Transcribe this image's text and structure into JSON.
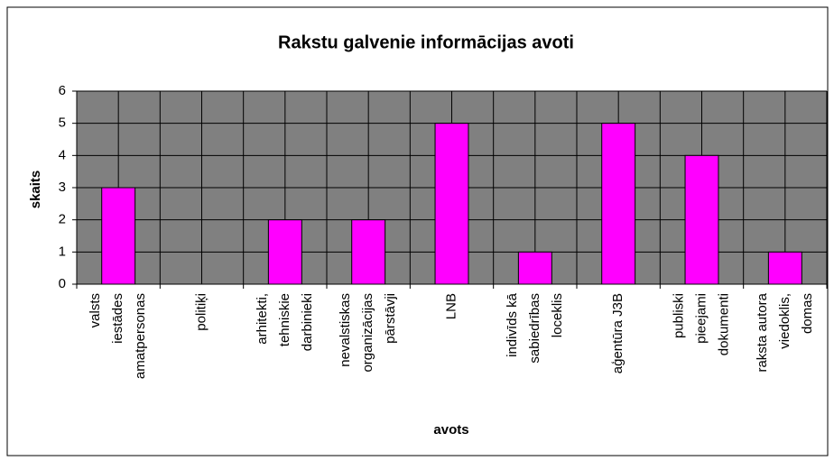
{
  "chart_data": {
    "type": "bar",
    "title": "Rakstu galvenie informācijas avoti",
    "x_label": "avots",
    "y_label": "skaits",
    "categories": [
      [
        "valsts",
        "iestādes",
        "amatpersonas"
      ],
      [
        "politiķi"
      ],
      [
        "arhitekti,",
        "tehniskie",
        "darbinieki"
      ],
      [
        "nevalstiskas",
        "organizācijas",
        "pārstāvji"
      ],
      [
        "LNB"
      ],
      [
        "indivīds kā",
        "sabiedrības",
        "loceklis"
      ],
      [
        "aģentūra J3B"
      ],
      [
        "publiski",
        "pieejami",
        "dokumenti"
      ],
      [
        "raksta autora",
        "viedoklis,",
        "domas"
      ]
    ],
    "values": [
      3,
      0,
      2,
      2,
      5,
      1,
      5,
      4,
      1
    ],
    "color": "#ff00ff",
    "ylim": [
      0,
      6
    ],
    "yticks": [
      0,
      1,
      2,
      3,
      4,
      5,
      6
    ],
    "grid": true
  }
}
